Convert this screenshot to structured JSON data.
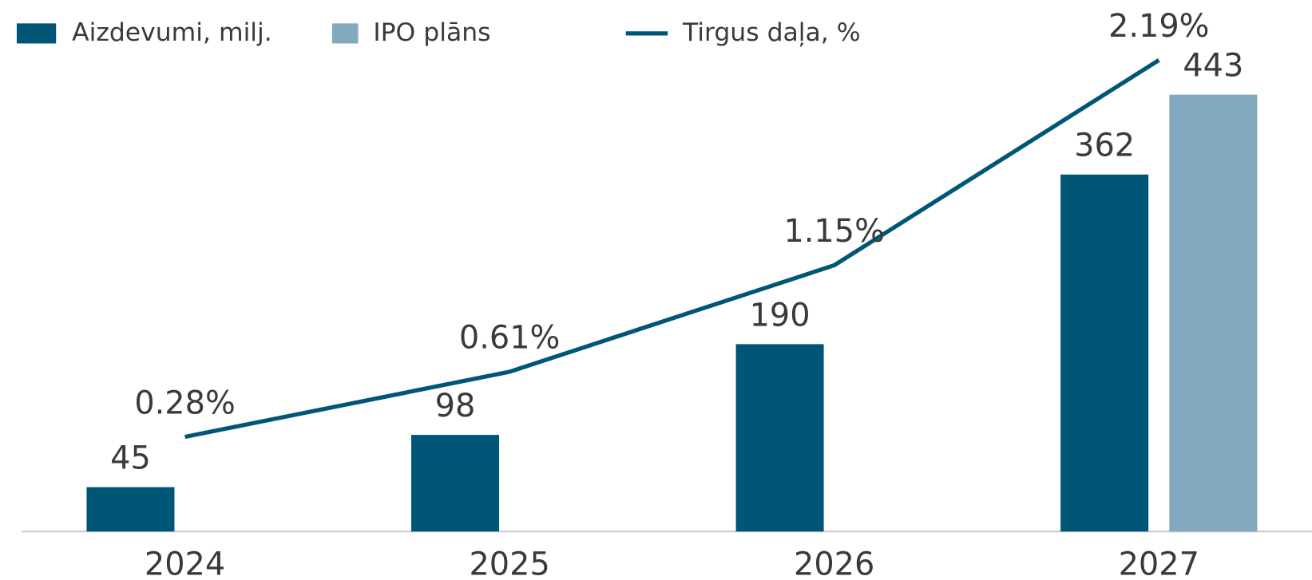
{
  "chart_data": {
    "type": "bar",
    "categories": [
      "2024",
      "2025",
      "2026",
      "2027"
    ],
    "series": [
      {
        "name": "Aizdevumi, milj.",
        "color": "#005677",
        "values": [
          45,
          98,
          190,
          362
        ]
      },
      {
        "name": "IPO plāns",
        "color": "#82a9bd",
        "values": [
          null,
          null,
          null,
          443
        ]
      },
      {
        "name": "Tirgus daļa, %",
        "color": "#005677",
        "type": "line",
        "axis": "y2",
        "values": [
          0.28,
          0.61,
          1.15,
          2.19
        ],
        "value_labels": [
          "0.28%",
          "0.61%",
          "1.15%",
          "2.19%"
        ]
      }
    ],
    "ylim": [
      0,
      500
    ],
    "y2lim": [
      -0.2,
      2.3
    ]
  }
}
